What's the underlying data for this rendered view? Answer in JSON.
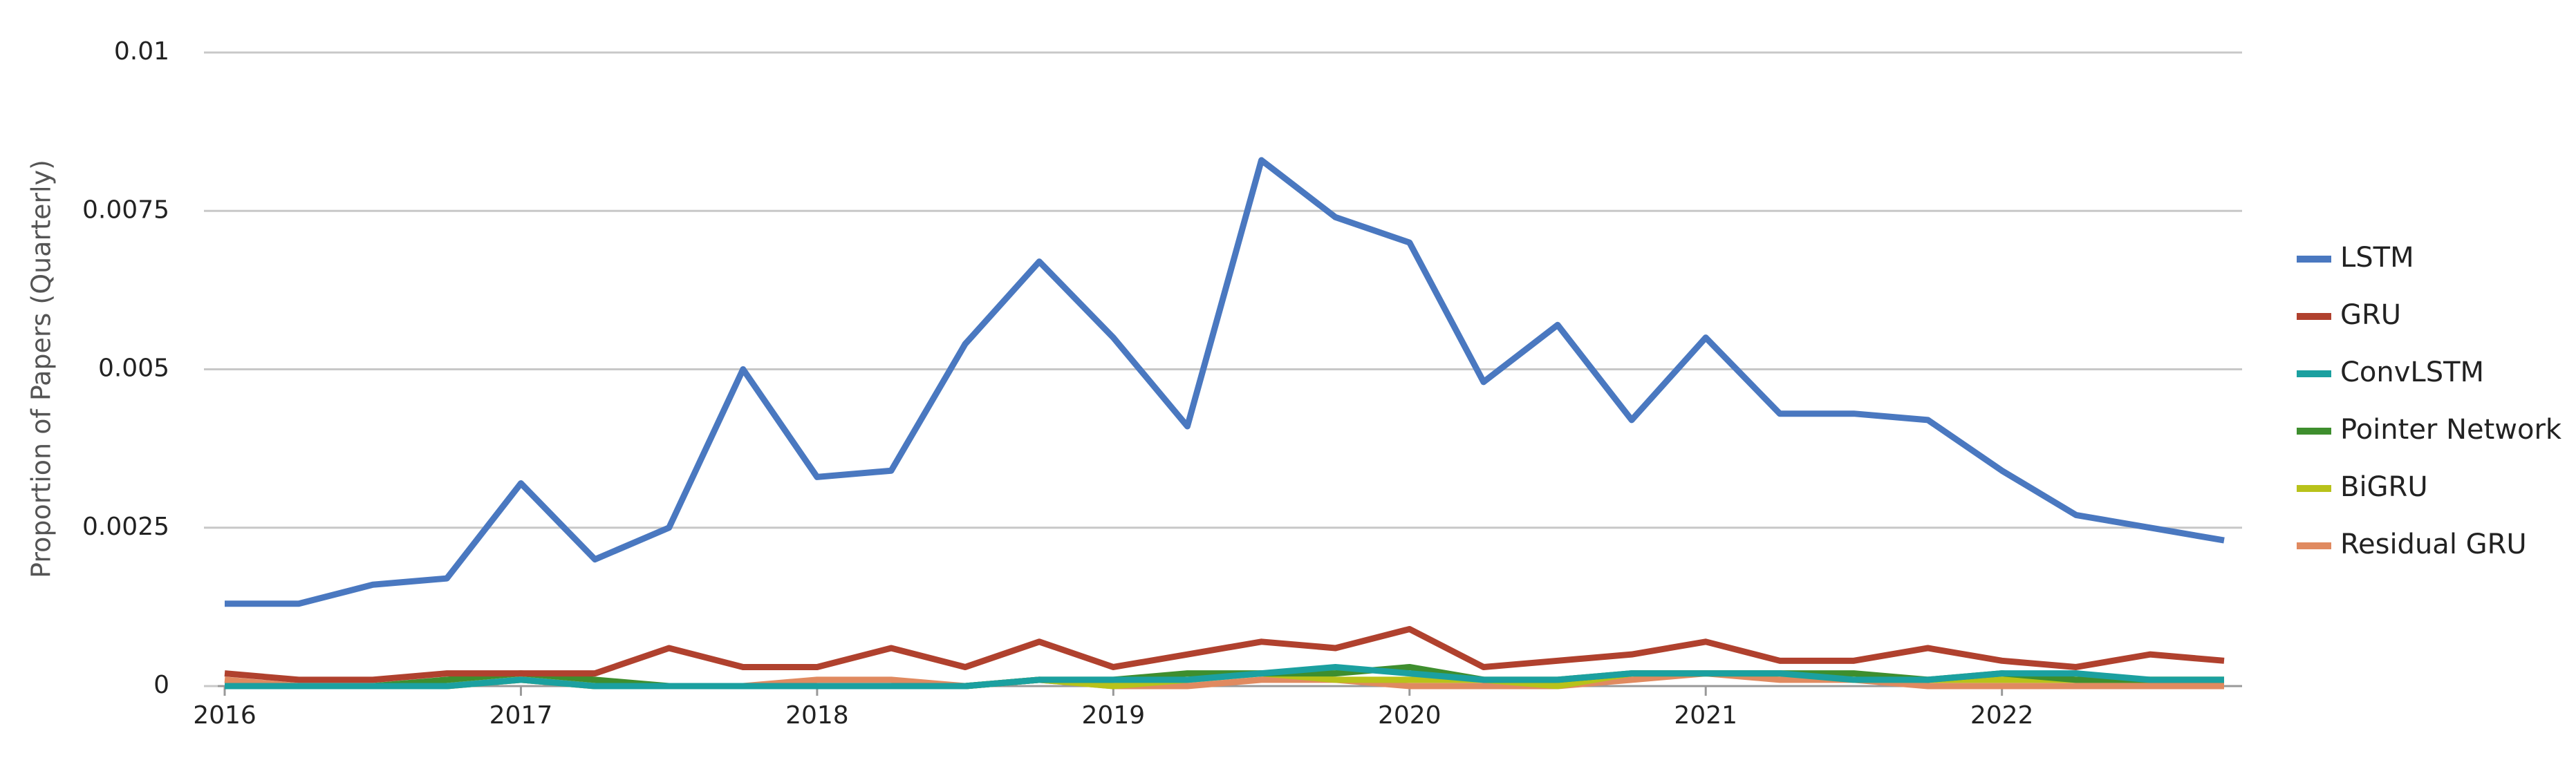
{
  "chart_data": {
    "type": "line",
    "y_label": "Proportion of Papers (Quarterly)",
    "x": [
      2016,
      2016.25,
      2016.5,
      2016.75,
      2017,
      2017.25,
      2017.5,
      2017.75,
      2018,
      2018.25,
      2018.5,
      2018.75,
      2019,
      2019.25,
      2019.5,
      2019.75,
      2020,
      2020.25,
      2020.5,
      2020.75,
      2021,
      2021.25,
      2021.5,
      2021.75,
      2022,
      2022.25,
      2022.5,
      2022.75
    ],
    "xlim": [
      2016,
      2022.75
    ],
    "xticks": [
      2016,
      2017,
      2018,
      2019,
      2020,
      2021,
      2022
    ],
    "ylim": [
      0,
      0.01
    ],
    "yticks": [
      0,
      0.0025,
      0.005,
      0.0075,
      0.01
    ],
    "grid": true,
    "legend": "right",
    "series": [
      {
        "name": "LSTM",
        "color": "#4a78c0",
        "values": [
          0.0013,
          0.0013,
          0.0016,
          0.0017,
          0.0032,
          0.002,
          0.0025,
          0.005,
          0.0033,
          0.0034,
          0.0054,
          0.0067,
          0.0055,
          0.0041,
          0.0083,
          0.0074,
          0.007,
          0.0048,
          0.0057,
          0.0042,
          0.0055,
          0.0043,
          0.0043,
          0.0042,
          0.0034,
          0.0027,
          0.0025,
          0.0023
        ]
      },
      {
        "name": "GRU",
        "color": "#b0412e",
        "values": [
          0.0002,
          0.0001,
          0.0001,
          0.0002,
          0.0002,
          0.0002,
          0.0006,
          0.0003,
          0.0003,
          0.0006,
          0.0003,
          0.0007,
          0.0003,
          0.0005,
          0.0007,
          0.0006,
          0.0009,
          0.0003,
          0.0004,
          0.0005,
          0.0007,
          0.0004,
          0.0004,
          0.0006,
          0.0004,
          0.0003,
          0.0005,
          0.0004
        ]
      },
      {
        "name": "ConvLSTM",
        "color": "#1ba0a0",
        "values": [
          0,
          0,
          0,
          0,
          0.0001,
          0,
          0,
          0,
          0,
          0,
          0,
          0.0001,
          0.0001,
          0.0001,
          0.0002,
          0.0003,
          0.0002,
          0.0001,
          0.0001,
          0.0002,
          0.0002,
          0.0002,
          0.0001,
          0.0001,
          0.0002,
          0.0002,
          0.0001,
          0.0001
        ]
      },
      {
        "name": "Pointer Network",
        "color": "#3e8e2e",
        "values": [
          0,
          0,
          0,
          0.0001,
          0.0002,
          0.0001,
          0,
          0,
          0,
          0,
          0,
          0.0001,
          0.0001,
          0.0002,
          0.0002,
          0.0002,
          0.0003,
          0.0001,
          0.0001,
          0.0002,
          0.0002,
          0.0002,
          0.0002,
          0.0001,
          0.0002,
          0.0001,
          0.0001,
          0.0001
        ]
      },
      {
        "name": "BiGRU",
        "color": "#b8c21a",
        "values": [
          0,
          0,
          0,
          0,
          0.0001,
          0,
          0,
          0,
          0,
          0,
          0,
          0.0001,
          0,
          0.0001,
          0.0002,
          0.0001,
          0.0001,
          0.0001,
          0,
          0.0002,
          0.0002,
          0.0002,
          0.0001,
          0.0001,
          0.0001,
          0.0001,
          0.0001,
          0.0001
        ]
      },
      {
        "name": "Residual GRU",
        "color": "#e08a60",
        "values": [
          0.0001,
          0,
          0,
          0,
          0.0001,
          0,
          0,
          0,
          0.0001,
          0.0001,
          0,
          0.0001,
          0,
          0,
          0.0001,
          0.0001,
          0,
          0,
          0,
          0.0001,
          0.0002,
          0.0001,
          0.0001,
          0,
          0,
          0,
          0,
          0
        ]
      }
    ]
  }
}
